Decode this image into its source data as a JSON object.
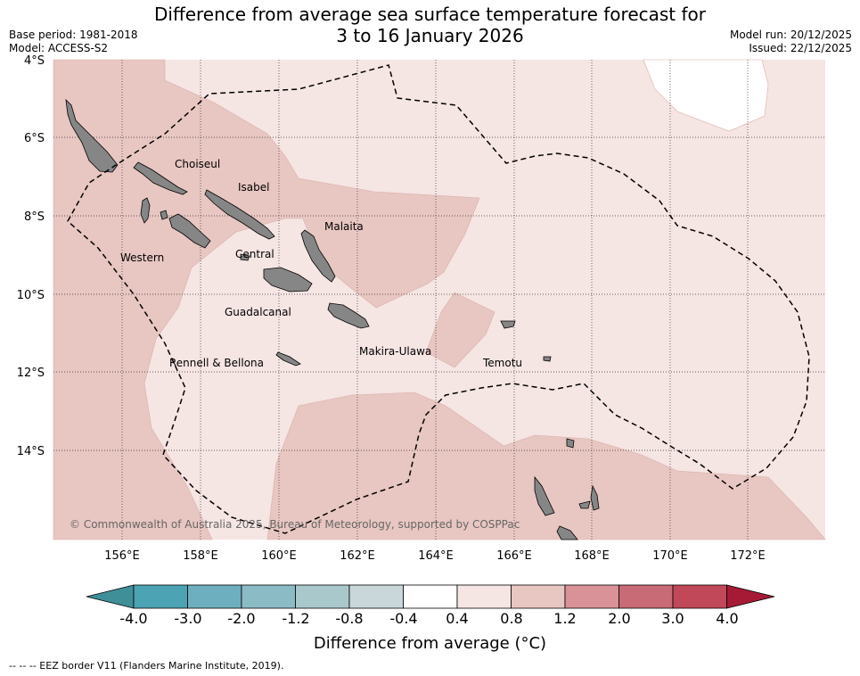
{
  "title_line1": "Difference from average sea surface temperature forecast for",
  "title_line2": "3 to 16 January 2026",
  "base_period": "Base period: 1981-2018",
  "model": "Model: ACCESS-S2",
  "model_run": "Model run: 20/12/2025",
  "issued": "Issued: 22/12/2025",
  "lat_labels": [
    "4°S",
    "6°S",
    "8°S",
    "10°S",
    "12°S",
    "14°S"
  ],
  "lon_labels": [
    "156°E",
    "158°E",
    "160°E",
    "162°E",
    "164°E",
    "166°E",
    "168°E",
    "170°E",
    "172°E"
  ],
  "regions": {
    "choiseul": "Choiseul",
    "isabel": "Isabel",
    "malaita": "Malaita",
    "western": "Western",
    "central": "Central",
    "guadalcanal": "Guadalcanal",
    "makira": "Makira-Ulawa",
    "rennell": "Rennell & Bellona",
    "temotu": "Temotu"
  },
  "copyright": "© Commonwealth of Australia 2025, Bureau of Meteorology, supported by COSPPac",
  "colorbar": {
    "ticks": [
      "-4.0",
      "-3.0",
      "-2.0",
      "-1.2",
      "-0.8",
      "-0.4",
      "0.4",
      "0.8",
      "1.2",
      "2.0",
      "3.0",
      "4.0"
    ],
    "colors": [
      "#3f8f99",
      "#4ba3b3",
      "#6eafbf",
      "#8bbcc6",
      "#a9c8cc",
      "#c9d7db",
      "#ffffff",
      "#f5e5e3",
      "#e8c6c1",
      "#d99298",
      "#c96b76",
      "#c04858",
      "#a61a35"
    ],
    "title": "Difference from average (°C)"
  },
  "footer": "-- -- -- EEZ border V11 (Flanders Marine Institute, 2019)."
}
